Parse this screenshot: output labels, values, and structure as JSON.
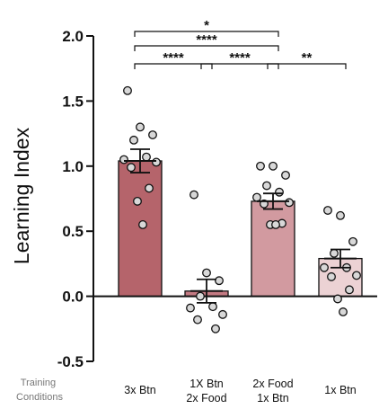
{
  "chart_data": {
    "type": "bar",
    "ylabel": "Learning Index",
    "ylim": [
      -0.5,
      2.0
    ],
    "yticks": [
      "2.0",
      "1.5",
      "1.0",
      "0.5",
      "0.0",
      "-0.5"
    ],
    "row_label": [
      "Training",
      "Conditions"
    ],
    "categories": [
      [
        "3x Btn"
      ],
      [
        "1X Btn",
        "2x Food"
      ],
      [
        "2x Food",
        "1x Btn"
      ],
      [
        "1x Btn"
      ]
    ],
    "colors": [
      "#b5646b",
      "#c47a83",
      "#d29aa0",
      "#ecd2d4"
    ],
    "values": [
      1.04,
      0.04,
      0.73,
      0.29
    ],
    "errors": [
      0.09,
      0.09,
      0.06,
      0.07
    ],
    "points": [
      [
        1.58,
        1.3,
        1.24,
        1.2,
        1.07,
        1.05,
        1.03,
        0.99,
        0.83,
        0.73,
        0.55
      ],
      [
        0.78,
        0.18,
        0.12,
        0.0,
        -0.08,
        -0.09,
        -0.14,
        -0.18,
        -0.25
      ],
      [
        1.0,
        1.0,
        0.93,
        0.85,
        0.8,
        0.76,
        0.72,
        0.71,
        0.56,
        0.55,
        0.55
      ],
      [
        0.66,
        0.62,
        0.42,
        0.33,
        0.22,
        0.22,
        0.16,
        0.15,
        0.05,
        -0.02,
        -0.12
      ]
    ],
    "comparisons": [
      {
        "from": 0,
        "to": 2,
        "label": "*"
      },
      {
        "from": 0,
        "to": 2,
        "label": "****"
      },
      {
        "from": 0,
        "to": 1,
        "label": "****"
      },
      {
        "from": 1,
        "to": 2,
        "label": "****"
      },
      {
        "from": 2,
        "to": 3,
        "label": "**"
      }
    ]
  }
}
